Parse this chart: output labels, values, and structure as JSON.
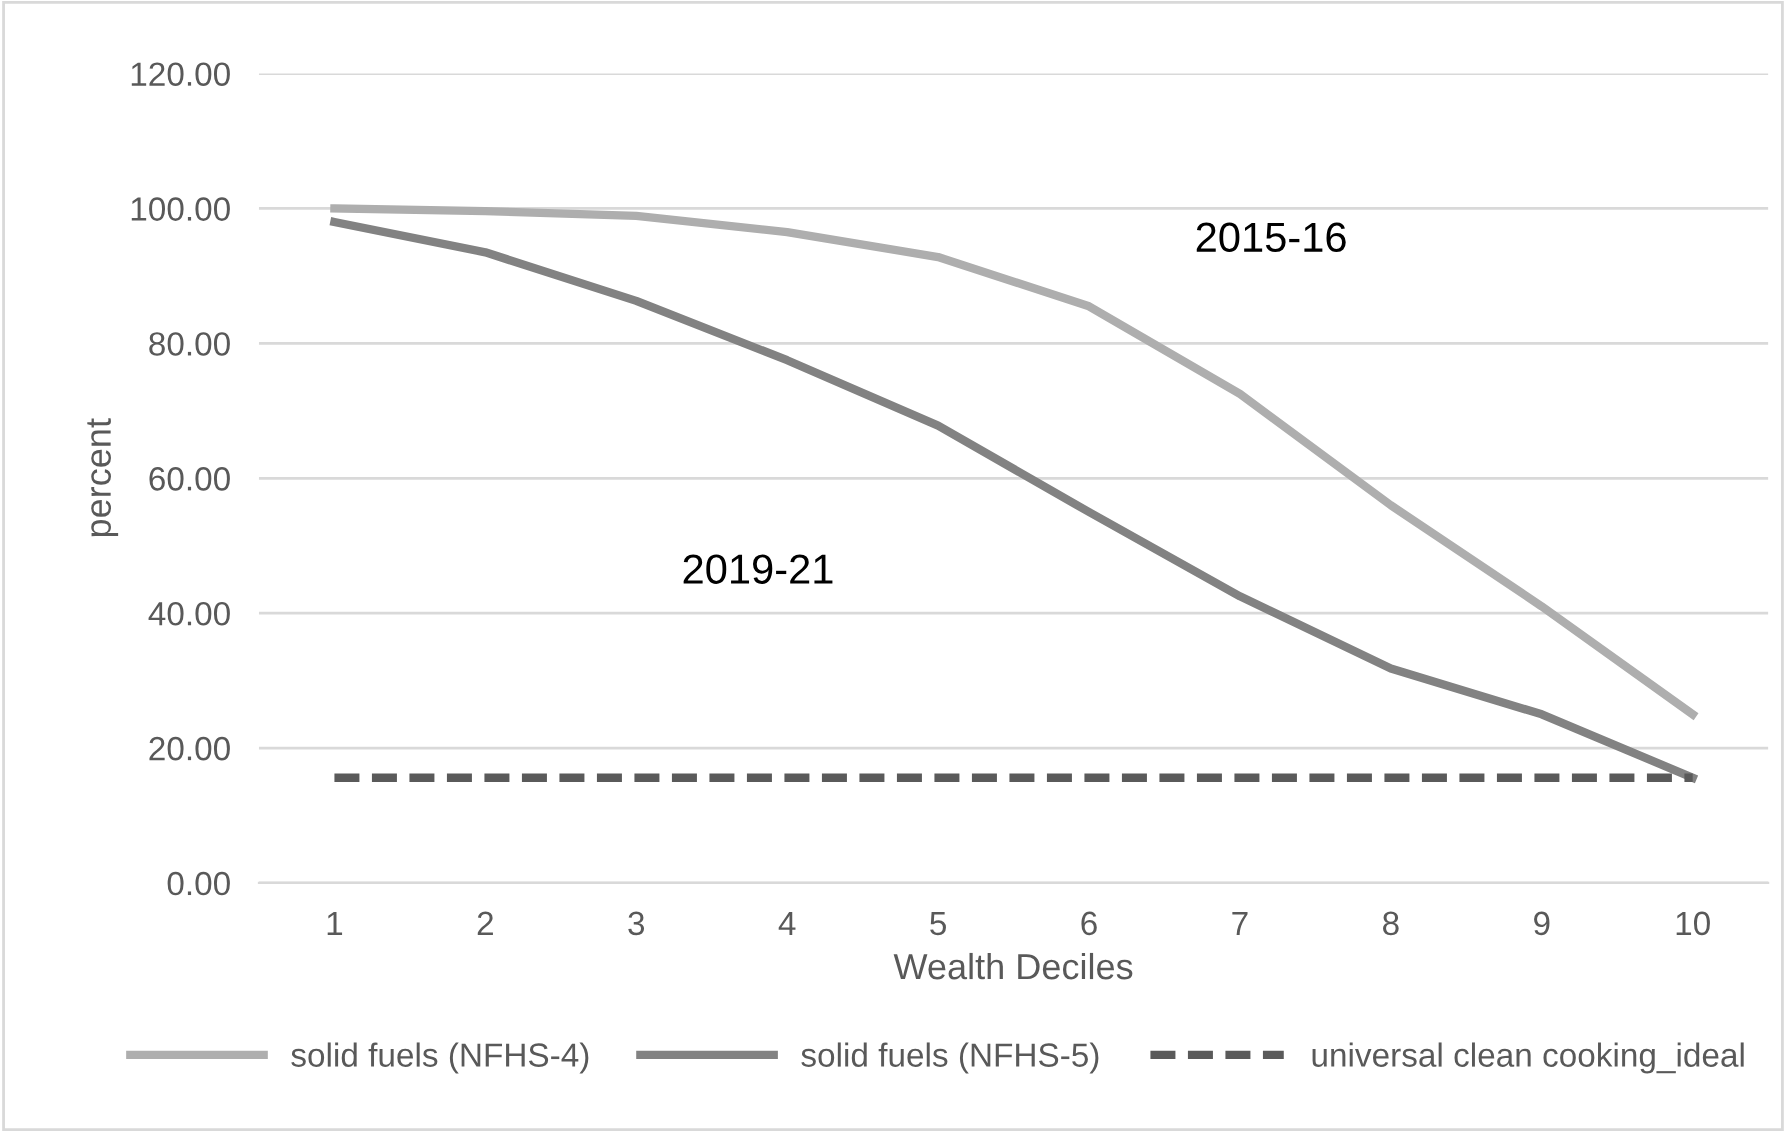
{
  "chart_data": {
    "type": "line",
    "xlabel": "Wealth Deciles",
    "ylabel": "percent",
    "categories": [
      "1",
      "2",
      "3",
      "4",
      "5",
      "6",
      "7",
      "8",
      "9",
      "10"
    ],
    "series": [
      {
        "name": "solid fuels (NFHS-4)",
        "color": "#aeaeae",
        "values": [
          100,
          99.6,
          98.9,
          96.5,
          92.8,
          85.5,
          72.5,
          56,
          41,
          25
        ]
      },
      {
        "name": "solid fuels (NFHS-5)",
        "color": "#828282",
        "values": [
          98,
          93.5,
          86.3,
          77.5,
          67.8,
          55,
          42.5,
          31.8,
          25,
          15.6
        ]
      },
      {
        "name": "universal clean cooking_ideal",
        "color": "#5a5a5a",
        "line_style": "dashed",
        "values": [
          15.6,
          15.6,
          15.6,
          15.6,
          15.6,
          15.6,
          15.6,
          15.6,
          15.6,
          15.6
        ]
      }
    ],
    "ylim": [
      0,
      120
    ],
    "yticks": [
      {
        "value": 0,
        "label": "0.00"
      },
      {
        "value": 20,
        "label": "20.00"
      },
      {
        "value": 40,
        "label": "40.00"
      },
      {
        "value": 60,
        "label": "60.00"
      },
      {
        "value": 80,
        "label": "80.00"
      },
      {
        "value": 100,
        "label": "100.00"
      },
      {
        "value": 120,
        "label": "120.00"
      }
    ],
    "annotations": [
      "2015-16",
      "2019-21"
    ],
    "grid": "y",
    "legend": "bottom",
    "marker": "none"
  }
}
